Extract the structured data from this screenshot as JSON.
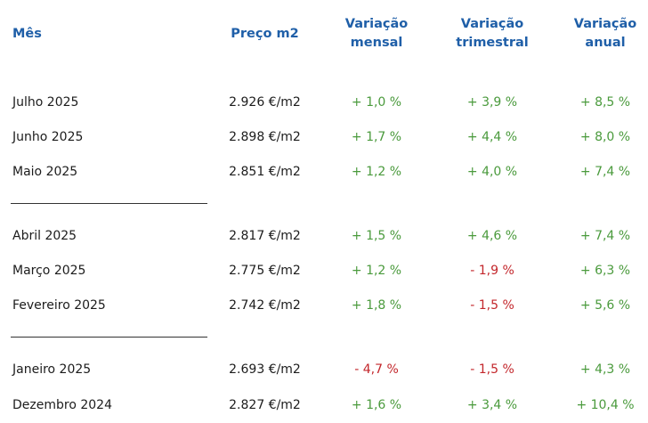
{
  "headers": {
    "month": "Mês",
    "price": "Preço m2",
    "monthly": [
      "Variação",
      "mensal"
    ],
    "quarterly": [
      "Variação",
      "trimestral"
    ],
    "annual": [
      "Variação",
      "anual"
    ]
  },
  "rows": [
    {
      "month": "Julho 2025",
      "price": "2.926 €/m2",
      "monthly": "+ 1,0 %",
      "quarterly": "+ 3,9 %",
      "annual": "+ 8,5 %"
    },
    {
      "month": "Junho 2025",
      "price": "2.898 €/m2",
      "monthly": "+ 1,7 %",
      "quarterly": "+ 4,4 %",
      "annual": "+ 8,0 %"
    },
    {
      "month": "Maio 2025",
      "price": "2.851 €/m2",
      "monthly": "+ 1,2 %",
      "quarterly": "+ 4,0 %",
      "annual": "+ 7,4 %"
    },
    {
      "month": "Abril 2025",
      "price": "2.817 €/m2",
      "monthly": "+ 1,5 %",
      "quarterly": "+ 4,6 %",
      "annual": "+ 7,4 %"
    },
    {
      "month": "Março 2025",
      "price": "2.775 €/m2",
      "monthly": "+ 1,2 %",
      "quarterly": "- 1,9 %",
      "annual": "+ 6,3 %"
    },
    {
      "month": "Fevereiro 2025",
      "price": "2.742 €/m2",
      "monthly": "+ 1,8 %",
      "quarterly": "- 1,5 %",
      "annual": "+ 5,6 %"
    },
    {
      "month": "Janeiro 2025",
      "price": "2.693 €/m2",
      "monthly": "- 4,7 %",
      "quarterly": "- 1,5 %",
      "annual": "+ 4,3 %"
    },
    {
      "month": "Dezembro 2024",
      "price": "2.827 €/m2",
      "monthly": "+ 1,6 %",
      "quarterly": "+ 3,4 %",
      "annual": "+ 10,4 %"
    }
  ],
  "colors": {
    "header": "#1f5fa8",
    "positive": "#4a9a3c",
    "negative": "#c3262b",
    "text": "#1c1c1c"
  }
}
